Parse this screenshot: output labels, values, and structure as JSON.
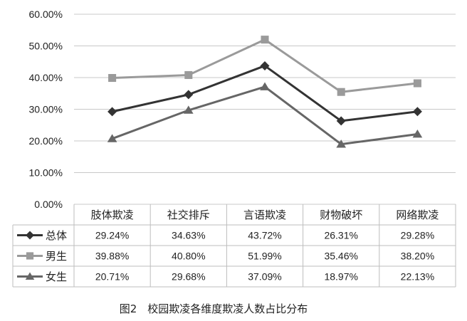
{
  "chart_data": {
    "type": "line",
    "categories": [
      "肢体欺凌",
      "社交排斥",
      "言语欺凌",
      "财物破坏",
      "网络欺凌"
    ],
    "series": [
      {
        "name": "总体",
        "values": [
          29.24,
          34.63,
          43.72,
          26.31,
          29.28
        ],
        "labels": [
          "29.24%",
          "34.63%",
          "43.72%",
          "26.31%",
          "29.28%"
        ],
        "color": "#333333",
        "marker": "diamond"
      },
      {
        "name": "男生",
        "values": [
          39.88,
          40.8,
          51.99,
          35.46,
          38.2
        ],
        "labels": [
          "39.88%",
          "40.80%",
          "51.99%",
          "35.46%",
          "38.20%"
        ],
        "color": "#9a9a9a",
        "marker": "square"
      },
      {
        "name": "女生",
        "values": [
          20.71,
          29.68,
          37.09,
          18.97,
          22.13
        ],
        "labels": [
          "20.71%",
          "29.68%",
          "37.09%",
          "18.97%",
          "22.13%"
        ],
        "color": "#666666",
        "marker": "triangle"
      }
    ],
    "ylim": [
      0,
      60
    ],
    "yticks": [
      0,
      10,
      20,
      30,
      40,
      50,
      60
    ],
    "ytick_labels": [
      "0.00%",
      "10.00%",
      "20.00%",
      "30.00%",
      "40.00%",
      "50.00%",
      "60.00%"
    ],
    "grid": true,
    "legend": "data-table-left",
    "title": "图2　校园欺凌各维度欺凌人数占比分布"
  }
}
